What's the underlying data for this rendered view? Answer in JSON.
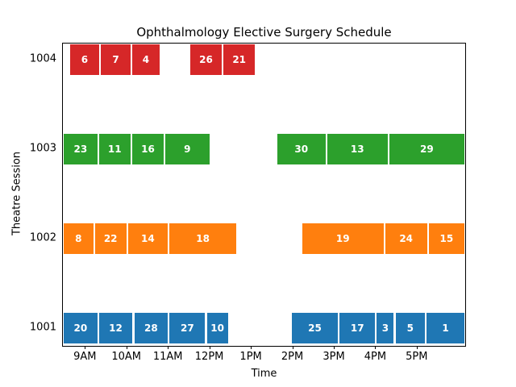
{
  "chart_data": {
    "type": "bar",
    "subtype": "broken_barh_gantt",
    "title": "Ophthalmology Elective Surgery Schedule",
    "xlabel": "Time",
    "ylabel": "Theatre Session",
    "x_domain_hours": [
      8.45,
      18.15
    ],
    "grid": false,
    "legend": "none",
    "x_ticks": [
      {
        "hour": 9,
        "label": "9AM"
      },
      {
        "hour": 10,
        "label": "10AM"
      },
      {
        "hour": 11,
        "label": "11AM"
      },
      {
        "hour": 12,
        "label": "12PM"
      },
      {
        "hour": 13,
        "label": "1PM"
      },
      {
        "hour": 14,
        "label": "2PM"
      },
      {
        "hour": 15,
        "label": "3PM"
      },
      {
        "hour": 16,
        "label": "4PM"
      },
      {
        "hour": 17,
        "label": "5PM"
      }
    ],
    "sessions": [
      {
        "id": "1004",
        "color": "#d62728",
        "segments": [
          {
            "case": "6",
            "start": 8.6,
            "end": 9.35
          },
          {
            "case": "7",
            "start": 9.35,
            "end": 10.1
          },
          {
            "case": "4",
            "start": 10.1,
            "end": 10.8
          },
          {
            "case": "26",
            "start": 11.5,
            "end": 12.3
          },
          {
            "case": "21",
            "start": 12.3,
            "end": 13.1
          }
        ]
      },
      {
        "id": "1003",
        "color": "#2ca02c",
        "segments": [
          {
            "case": "23",
            "start": 8.45,
            "end": 9.3
          },
          {
            "case": "11",
            "start": 9.3,
            "end": 10.1
          },
          {
            "case": "16",
            "start": 10.1,
            "end": 10.9
          },
          {
            "case": "9",
            "start": 10.9,
            "end": 12.0
          },
          {
            "case": "30",
            "start": 13.6,
            "end": 14.8
          },
          {
            "case": "13",
            "start": 14.8,
            "end": 16.3
          },
          {
            "case": "29",
            "start": 16.3,
            "end": 18.15
          }
        ]
      },
      {
        "id": "1002",
        "color": "#ff7f0e",
        "segments": [
          {
            "case": "8",
            "start": 8.45,
            "end": 9.2
          },
          {
            "case": "22",
            "start": 9.2,
            "end": 10.0
          },
          {
            "case": "14",
            "start": 10.0,
            "end": 11.0
          },
          {
            "case": "18",
            "start": 11.0,
            "end": 12.65
          },
          {
            "case": "19",
            "start": 14.2,
            "end": 16.2
          },
          {
            "case": "24",
            "start": 16.2,
            "end": 17.25
          },
          {
            "case": "15",
            "start": 17.25,
            "end": 18.15
          }
        ]
      },
      {
        "id": "1001",
        "color": "#1f77b4",
        "segments": [
          {
            "case": "20",
            "start": 8.45,
            "end": 9.3
          },
          {
            "case": "12",
            "start": 9.3,
            "end": 10.15
          },
          {
            "case": "28",
            "start": 10.15,
            "end": 11.0
          },
          {
            "case": "27",
            "start": 11.0,
            "end": 11.9
          },
          {
            "case": "10",
            "start": 11.9,
            "end": 12.45
          },
          {
            "case": "25",
            "start": 13.95,
            "end": 15.1
          },
          {
            "case": "17",
            "start": 15.1,
            "end": 16.0
          },
          {
            "case": "3",
            "start": 16.0,
            "end": 16.45
          },
          {
            "case": "5",
            "start": 16.45,
            "end": 17.2
          },
          {
            "case": "1",
            "start": 17.2,
            "end": 18.15
          }
        ]
      }
    ]
  }
}
